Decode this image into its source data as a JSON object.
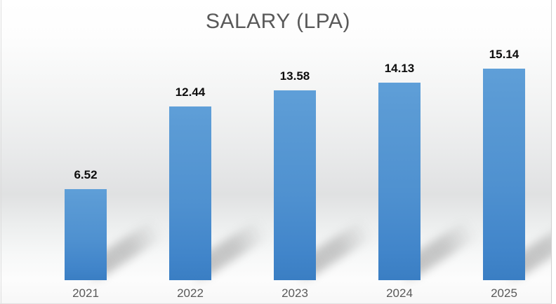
{
  "chart_data": {
    "type": "bar",
    "title": "SALARY (LPA)",
    "categories": [
      "2021",
      "2022",
      "2023",
      "2024",
      "2025"
    ],
    "values": [
      6.52,
      12.44,
      13.58,
      14.13,
      15.14
    ],
    "labels": [
      "6.52",
      "12.44",
      "13.58",
      "14.13",
      "15.14"
    ],
    "xlabel": "",
    "ylabel": "",
    "ylim": [
      0,
      16
    ],
    "grid": false,
    "legend": "none",
    "data_labels": "above-bars",
    "colors": {
      "bar_top": "#5b9bd5",
      "bar_bottom": "#3a7ec3",
      "title": "#595959",
      "value_label": "#0d0d0d",
      "axis_label": "#595959",
      "background_top": "#ffffff",
      "background_mid": "#e0e1e2",
      "background_bottom": "#f7f7f7",
      "shadow": "#787878"
    }
  }
}
